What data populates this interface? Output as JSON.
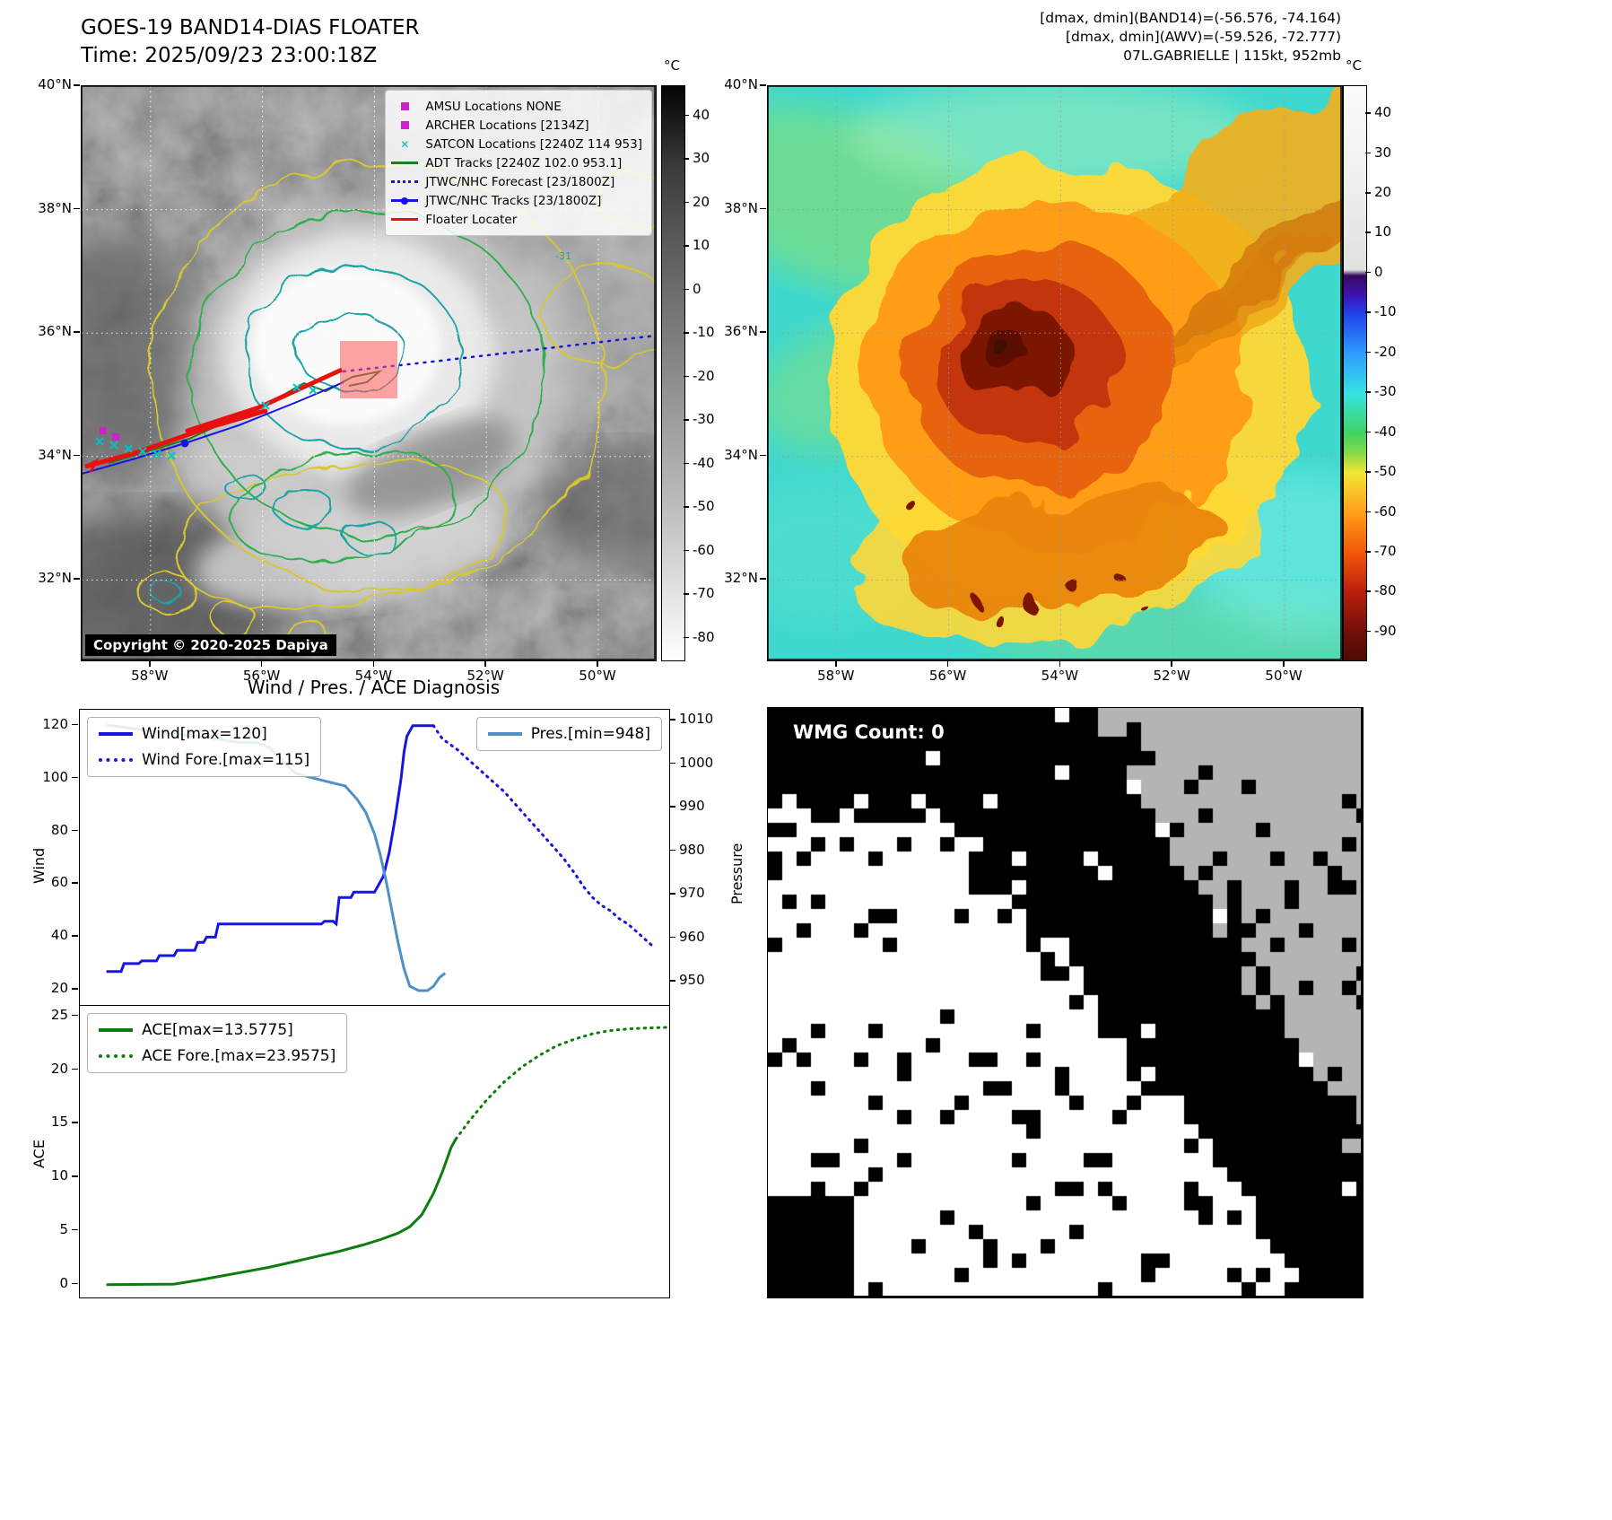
{
  "panel_tl": {
    "title": "GOES-19 BAND14-DIAS FLOATER",
    "time_line": "Time: 2025/09/23 23:00:18Z",
    "legend": [
      {
        "label": "AMSU Locations NONE",
        "marker": "square",
        "color": "#cc22cc"
      },
      {
        "label": "ARCHER Locations [2134Z]",
        "marker": "square",
        "color": "#cc22cc"
      },
      {
        "label": "SATCON Locations [2240Z 114 953]",
        "marker": "x",
        "color": "#00bdbd"
      },
      {
        "label": "ADT Tracks [2240Z 102.0 953.1]",
        "marker": "line",
        "color": "#1e7d1e"
      },
      {
        "label": "JTWC/NHC Forecast [23/1800Z]",
        "marker": "dotted",
        "color": "#1616e0"
      },
      {
        "label": "JTWC/NHC Tracks [23/1800Z]",
        "marker": "line-dot",
        "color": "#1616e0"
      },
      {
        "label": "Floater Locater",
        "marker": "line",
        "color": "#e81010"
      }
    ],
    "lat_labels": [
      "40°N",
      "38°N",
      "36°N",
      "34°N",
      "32°N"
    ],
    "lon_labels": [
      "58°W",
      "56°W",
      "54°W",
      "52°W",
      "50°W"
    ],
    "colorbar_unit": "°C",
    "colorbar_ticks": [
      "40",
      "30",
      "20",
      "10",
      "0",
      "-10",
      "-20",
      "-30",
      "-40",
      "-50",
      "-60",
      "-70",
      "-80"
    ],
    "contour_label": "-31",
    "copyright": "Copyright © 2020-2025 Dapiya"
  },
  "panel_tr": {
    "header_line1": "[dmax, dmin](BAND14)=(-56.576, -74.164)",
    "header_line2": "[dmax, dmin](AWV)=(-59.526, -72.777)",
    "header_line3": "07L.GABRIELLE | 115kt, 952mb",
    "lat_labels": [
      "40°N",
      "38°N",
      "36°N",
      "34°N",
      "32°N"
    ],
    "lon_labels": [
      "58°W",
      "56°W",
      "54°W",
      "52°W",
      "50°W"
    ],
    "colorbar_unit": "°C",
    "colorbar_ticks": [
      "40",
      "30",
      "20",
      "10",
      "0",
      "-10",
      "-20",
      "-30",
      "-40",
      "-50",
      "-60",
      "-70",
      "-80",
      "-90"
    ]
  },
  "diagnosis_title": "Wind / Pres. / ACE Diagnosis",
  "wmg_overlay": "WMG Count: 0",
  "chart_data": [
    {
      "type": "line",
      "title": "Wind / Pres. / ACE Diagnosis",
      "xlabel": "",
      "ylabel": "Wind",
      "y2label": "Pressure",
      "xlim": [
        0,
        1
      ],
      "ylim": [
        14,
        126
      ],
      "y2lim": [
        944.5,
        1012.5
      ],
      "yticks": [
        20,
        40,
        60,
        80,
        100,
        120
      ],
      "y2ticks": [
        950,
        960,
        970,
        980,
        990,
        1000,
        1010
      ],
      "legend_left": [
        "Wind[max=120]",
        "Wind Fore.[max=115]"
      ],
      "legend_right": [
        "Pres.[min=948]"
      ],
      "series": [
        {
          "name": "Wind",
          "style": "solid",
          "color": "#1616e0",
          "axis": "y",
          "points": [
            [
              0.045,
              27
            ],
            [
              0.07,
              27
            ],
            [
              0.075,
              30
            ],
            [
              0.1,
              30
            ],
            [
              0.105,
              31
            ],
            [
              0.13,
              31
            ],
            [
              0.135,
              33
            ],
            [
              0.16,
              33
            ],
            [
              0.165,
              35
            ],
            [
              0.195,
              35
            ],
            [
              0.2,
              38
            ],
            [
              0.21,
              38
            ],
            [
              0.215,
              40
            ],
            [
              0.23,
              40
            ],
            [
              0.235,
              45
            ],
            [
              0.41,
              45
            ],
            [
              0.415,
              46
            ],
            [
              0.43,
              46
            ],
            [
              0.435,
              45
            ],
            [
              0.44,
              55
            ],
            [
              0.46,
              55
            ],
            [
              0.465,
              57
            ],
            [
              0.5,
              57
            ],
            [
              0.515,
              63
            ],
            [
              0.525,
              72
            ],
            [
              0.535,
              85
            ],
            [
              0.545,
              100
            ],
            [
              0.55,
              110
            ],
            [
              0.555,
              116
            ],
            [
              0.565,
              120
            ],
            [
              0.6,
              120
            ]
          ]
        },
        {
          "name": "Wind Fore.",
          "style": "dotted",
          "color": "#1616e0",
          "axis": "y",
          "points": [
            [
              0.6,
              120
            ],
            [
              0.615,
              115
            ],
            [
              0.64,
              111
            ],
            [
              0.66,
              107
            ],
            [
              0.68,
              103
            ],
            [
              0.7,
              99
            ],
            [
              0.72,
              95
            ],
            [
              0.74,
              90
            ],
            [
              0.76,
              85
            ],
            [
              0.78,
              80
            ],
            [
              0.8,
              75
            ],
            [
              0.82,
              70
            ],
            [
              0.84,
              64
            ],
            [
              0.855,
              59
            ],
            [
              0.87,
              55
            ],
            [
              0.885,
              52
            ],
            [
              0.9,
              50
            ],
            [
              0.915,
              47
            ],
            [
              0.93,
              45
            ],
            [
              0.945,
              42
            ],
            [
              0.955,
              40
            ],
            [
              0.965,
              38
            ],
            [
              0.97,
              37
            ]
          ]
        },
        {
          "name": "Pres.",
          "style": "solid",
          "color": "#4f91c4",
          "axis": "y2",
          "points": [
            [
              0.045,
              1009
            ],
            [
              0.1,
              1008
            ],
            [
              0.16,
              1007
            ],
            [
              0.22,
              1006
            ],
            [
              0.27,
              1005
            ],
            [
              0.3,
              1005
            ],
            [
              0.32,
              1004
            ],
            [
              0.335,
              1002
            ],
            [
              0.35,
              1000
            ],
            [
              0.365,
              998
            ],
            [
              0.39,
              997
            ],
            [
              0.42,
              996
            ],
            [
              0.45,
              995
            ],
            [
              0.47,
              992
            ],
            [
              0.485,
              989
            ],
            [
              0.5,
              984
            ],
            [
              0.51,
              979
            ],
            [
              0.52,
              973
            ],
            [
              0.53,
              966
            ],
            [
              0.54,
              959
            ],
            [
              0.55,
              953
            ],
            [
              0.56,
              949
            ],
            [
              0.575,
              948
            ],
            [
              0.59,
              948
            ],
            [
              0.6,
              949
            ],
            [
              0.61,
              951
            ],
            [
              0.62,
              952
            ]
          ]
        }
      ]
    },
    {
      "type": "line",
      "ylabel": "ACE",
      "xlim": [
        0,
        1
      ],
      "ylim": [
        -1.2,
        26
      ],
      "yticks": [
        0,
        5,
        10,
        15,
        20,
        25
      ],
      "legend_left": [
        "ACE[max=13.5775]",
        "ACE Fore.[max=23.9575]"
      ],
      "series": [
        {
          "name": "ACE",
          "style": "solid",
          "color": "#0e7d0e",
          "axis": "y",
          "points": [
            [
              0.045,
              0
            ],
            [
              0.16,
              0.05
            ],
            [
              0.2,
              0.4
            ],
            [
              0.24,
              0.8
            ],
            [
              0.28,
              1.2
            ],
            [
              0.32,
              1.6
            ],
            [
              0.36,
              2.1
            ],
            [
              0.4,
              2.6
            ],
            [
              0.44,
              3.1
            ],
            [
              0.48,
              3.7
            ],
            [
              0.51,
              4.2
            ],
            [
              0.54,
              4.8
            ],
            [
              0.56,
              5.4
            ],
            [
              0.58,
              6.5
            ],
            [
              0.6,
              8.5
            ],
            [
              0.615,
              10.5
            ],
            [
              0.63,
              12.8
            ],
            [
              0.638,
              13.58
            ]
          ]
        },
        {
          "name": "ACE Fore.",
          "style": "dotted",
          "color": "#0e7d0e",
          "axis": "y",
          "points": [
            [
              0.638,
              13.58
            ],
            [
              0.66,
              15.2
            ],
            [
              0.69,
              17.2
            ],
            [
              0.72,
              18.9
            ],
            [
              0.75,
              20.3
            ],
            [
              0.78,
              21.4
            ],
            [
              0.81,
              22.3
            ],
            [
              0.84,
              22.9
            ],
            [
              0.87,
              23.4
            ],
            [
              0.9,
              23.7
            ],
            [
              0.93,
              23.85
            ],
            [
              0.96,
              23.93
            ],
            [
              1.0,
              24.0
            ]
          ]
        }
      ]
    }
  ]
}
